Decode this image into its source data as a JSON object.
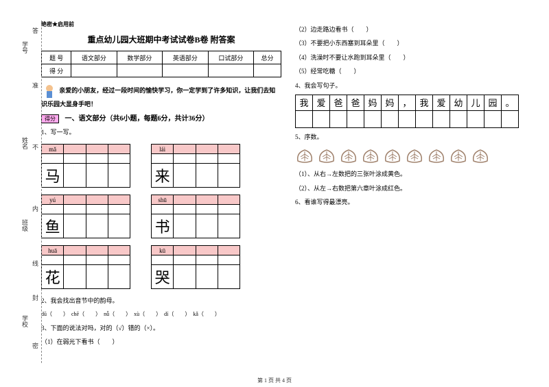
{
  "secret_label": "绝密★启用前",
  "title": "重点幼儿园大班期中考试试卷B卷 附答案",
  "score_headers": [
    "题  号",
    "语文部分",
    "数学部分",
    "英语部分",
    "口试部分",
    "总分"
  ],
  "score_row_label": "得  分",
  "intro": "亲爱的小朋友，经过一段时间的愉快学习，你一定学到了许多知识，让我们去知识乐园大显身手吧！",
  "score_badge": "得分",
  "section1_title": "一、语文部分（共6小题，每题6分，共计36分）",
  "q1_label": "1、写一写。",
  "writing_boxes": [
    {
      "pinyin": "mǎ",
      "char": "马"
    },
    {
      "pinyin": "lái",
      "char": "来"
    },
    {
      "pinyin": "yú",
      "char": "鱼"
    },
    {
      "pinyin": "shū",
      "char": "书"
    },
    {
      "pinyin": "huā",
      "char": "花"
    },
    {
      "pinyin": "kū",
      "char": "哭"
    }
  ],
  "q2_label": "2、我会找出音节中的韵母。",
  "q2_items": "dū（　　）　chē（　　）　nǚ（　　）　xù（　　）　dí（　　）　kǎ（　　）",
  "q3_label": "3、下面的说法对吗，对的（√）错的（×）。",
  "q3_items": [
    "（1）在弱光下看书（　　）",
    "（2）边走路边看书（　　）",
    "（3）不要把小东西塞到耳朵里（　　）",
    "（4）洗澡时不要让水跑到耳朵里（　　）",
    "（5）经常吃糖（　　）"
  ],
  "q4_label": "4、我会写句子。",
  "sentence_chars": [
    "我",
    "爱",
    "爸",
    "爸",
    "妈",
    "妈",
    "，",
    "我",
    "爱",
    "幼",
    "儿",
    "园",
    "。"
  ],
  "q5_label": "5、序数。",
  "leaf_count": 9,
  "leaf_color": "#a0826d",
  "q5_sub1": "（1）、从右→左数把的三张叶涂成黄色。",
  "q5_sub2": "（2）、从左→右数把第六章叶涂成红色。",
  "q6_label": "6、看谁写得最漂亮。",
  "footer": "第 1 页 共 4 页",
  "sidebar_labels": [
    "学号",
    "姓名",
    "班级",
    "学校"
  ],
  "sidebar_hints": [
    "答",
    "准",
    "不",
    "内",
    "线",
    "封",
    "密"
  ]
}
